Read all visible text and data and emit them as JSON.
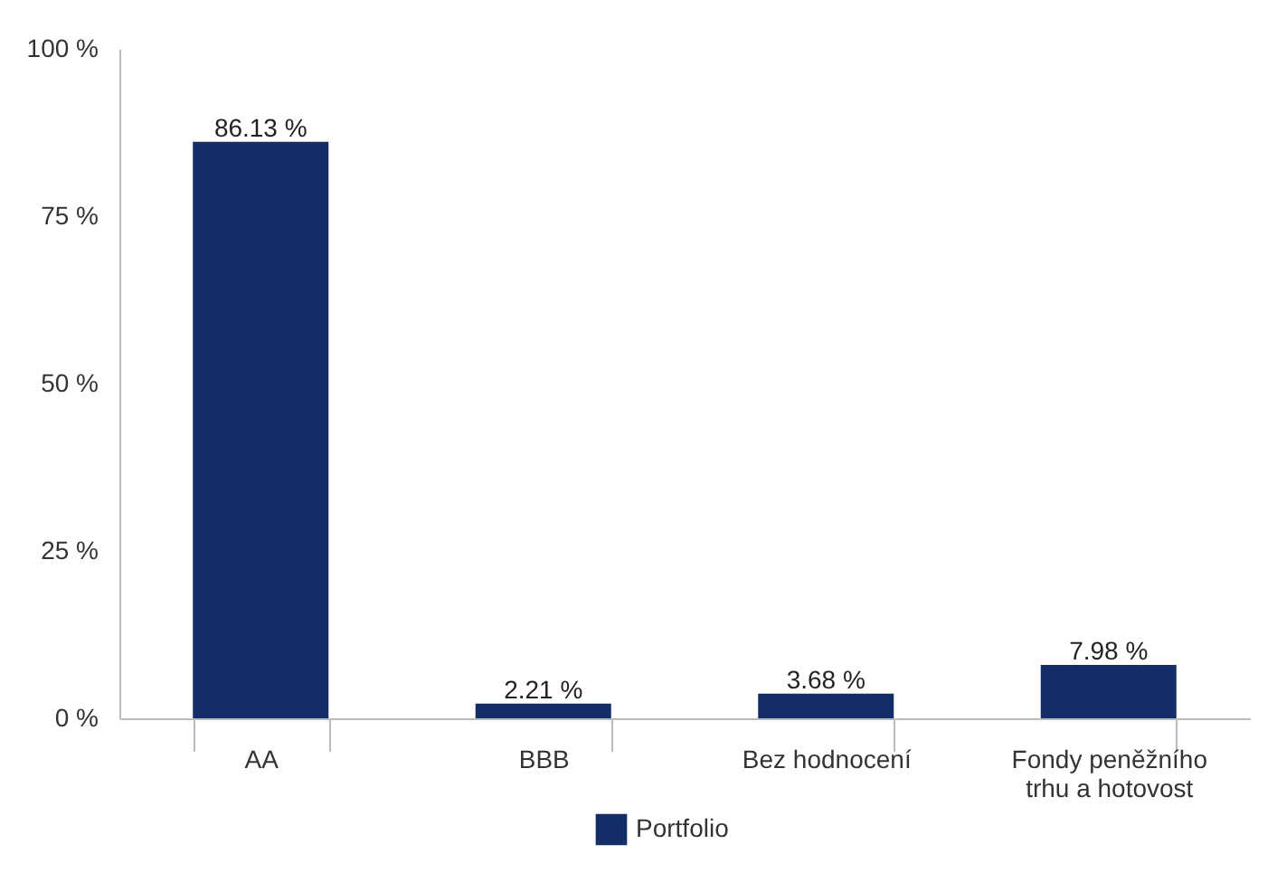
{
  "chart_data": {
    "type": "bar",
    "categories": [
      "AA",
      "BBB",
      "Bez hodnocení",
      "Fondy peněžního trhu a hotovost"
    ],
    "series": [
      {
        "name": "Portfolio",
        "color": "#132d67",
        "values": [
          86.13,
          2.21,
          3.68,
          7.98
        ],
        "value_labels": [
          "86.13 %",
          "2.21 %",
          "3.68 %",
          "7.98 %"
        ]
      }
    ],
    "ylim": [
      0,
      100
    ],
    "yticks": [
      {
        "value": 0,
        "label": "0 %"
      },
      {
        "value": 25,
        "label": "25 %"
      },
      {
        "value": 50,
        "label": "50 %"
      },
      {
        "value": 75,
        "label": "75 %"
      },
      {
        "value": 100,
        "label": "100 %"
      }
    ],
    "grid": false,
    "legend": "bottom"
  }
}
